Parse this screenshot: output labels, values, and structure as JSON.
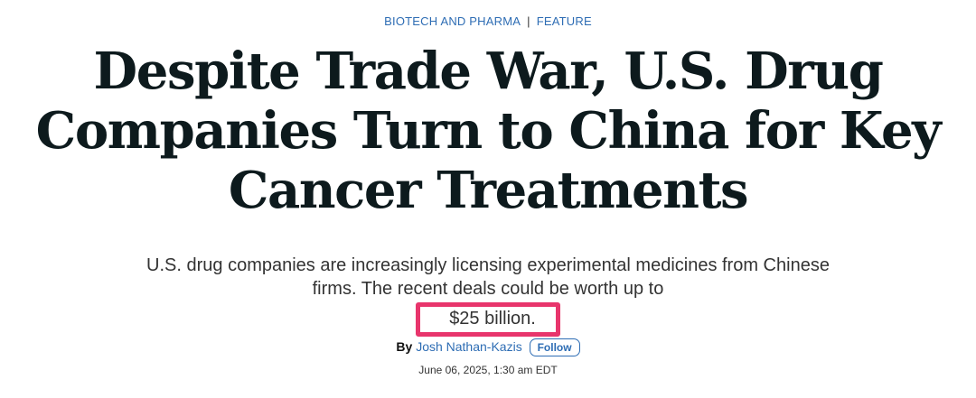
{
  "article": {
    "category": {
      "primary": "BIOTECH AND PHARMA",
      "separator": "|",
      "secondary": "FEATURE"
    },
    "headline": "Despite Trade War, U.S. Drug Companies Turn to China for Key Cancer Treatments",
    "dek": {
      "text": "U.S. drug companies are increasingly licensing experimental medicines from Chinese firms. The recent deals could be worth up to",
      "highlighted": "$25 billion."
    },
    "byline": {
      "prefix": "By",
      "author": "Josh Nathan-Kazis",
      "follow_label": "Follow"
    },
    "timestamp": "June 06, 2025, 1:30 am EDT"
  },
  "colors": {
    "link_blue": "#2e6db4",
    "headline": "#0d1a1d",
    "highlight_border": "#e8356c"
  }
}
